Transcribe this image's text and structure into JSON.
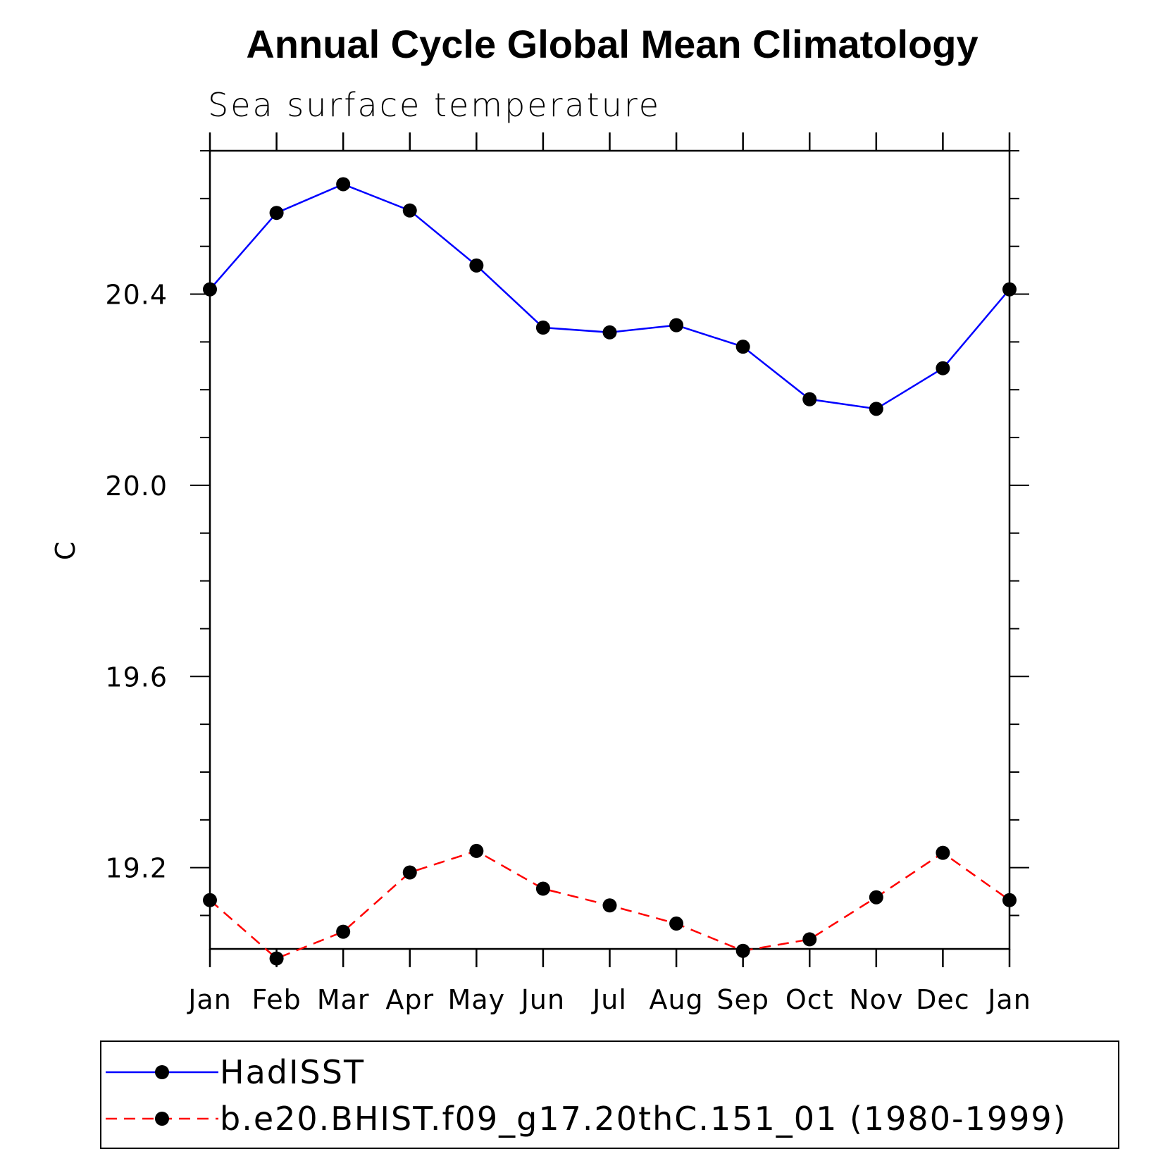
{
  "chart_data": {
    "type": "line",
    "title": "Annual Cycle Global Mean Climatology",
    "subtitle": "Sea surface temperature",
    "xlabel": "",
    "ylabel": "C",
    "categories": [
      "Jan",
      "Feb",
      "Mar",
      "Apr",
      "May",
      "Jun",
      "Jul",
      "Aug",
      "Sep",
      "Oct",
      "Nov",
      "Dec",
      "Jan"
    ],
    "yticks": [
      "20.4",
      "20.0",
      "19.6",
      "19.2"
    ],
    "ylim": [
      19.03,
      20.7
    ],
    "grid": false,
    "legend_position": "bottom",
    "series": [
      {
        "name": "HadISST",
        "color": "#0000ff",
        "style": "solid",
        "marker": "filled-circle",
        "values": [
          20.41,
          20.57,
          20.63,
          20.575,
          20.46,
          20.33,
          20.32,
          20.335,
          20.29,
          20.18,
          20.16,
          20.245,
          20.41
        ]
      },
      {
        "name": "b.e20.BHIST.f09_g17.20thC.151_01 (1980-1999)",
        "color": "#ff0000",
        "style": "dashed",
        "marker": "filled-circle",
        "values": [
          19.132,
          19.01,
          19.066,
          19.19,
          19.235,
          19.156,
          19.121,
          19.083,
          19.026,
          19.05,
          19.138,
          19.231,
          19.132
        ]
      }
    ]
  }
}
